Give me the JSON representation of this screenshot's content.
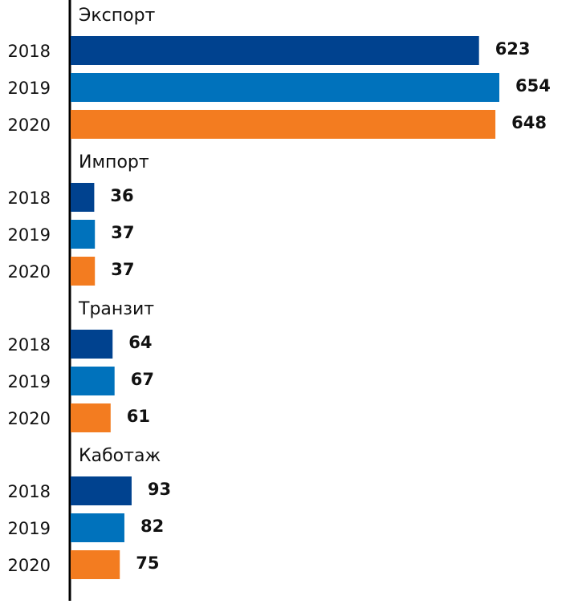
{
  "chart_data": {
    "type": "bar",
    "orientation": "horizontal",
    "categories": [
      "Экспорт",
      "Импорт",
      "Транзит",
      "Каботаж"
    ],
    "series": [
      {
        "name": "2018",
        "color": "#00428f",
        "values": [
          623,
          36,
          64,
          93
        ]
      },
      {
        "name": "2019",
        "color": "#0072bc",
        "values": [
          654,
          37,
          67,
          82
        ]
      },
      {
        "name": "2020",
        "color": "#f37c20",
        "values": [
          648,
          37,
          61,
          75
        ]
      }
    ]
  }
}
